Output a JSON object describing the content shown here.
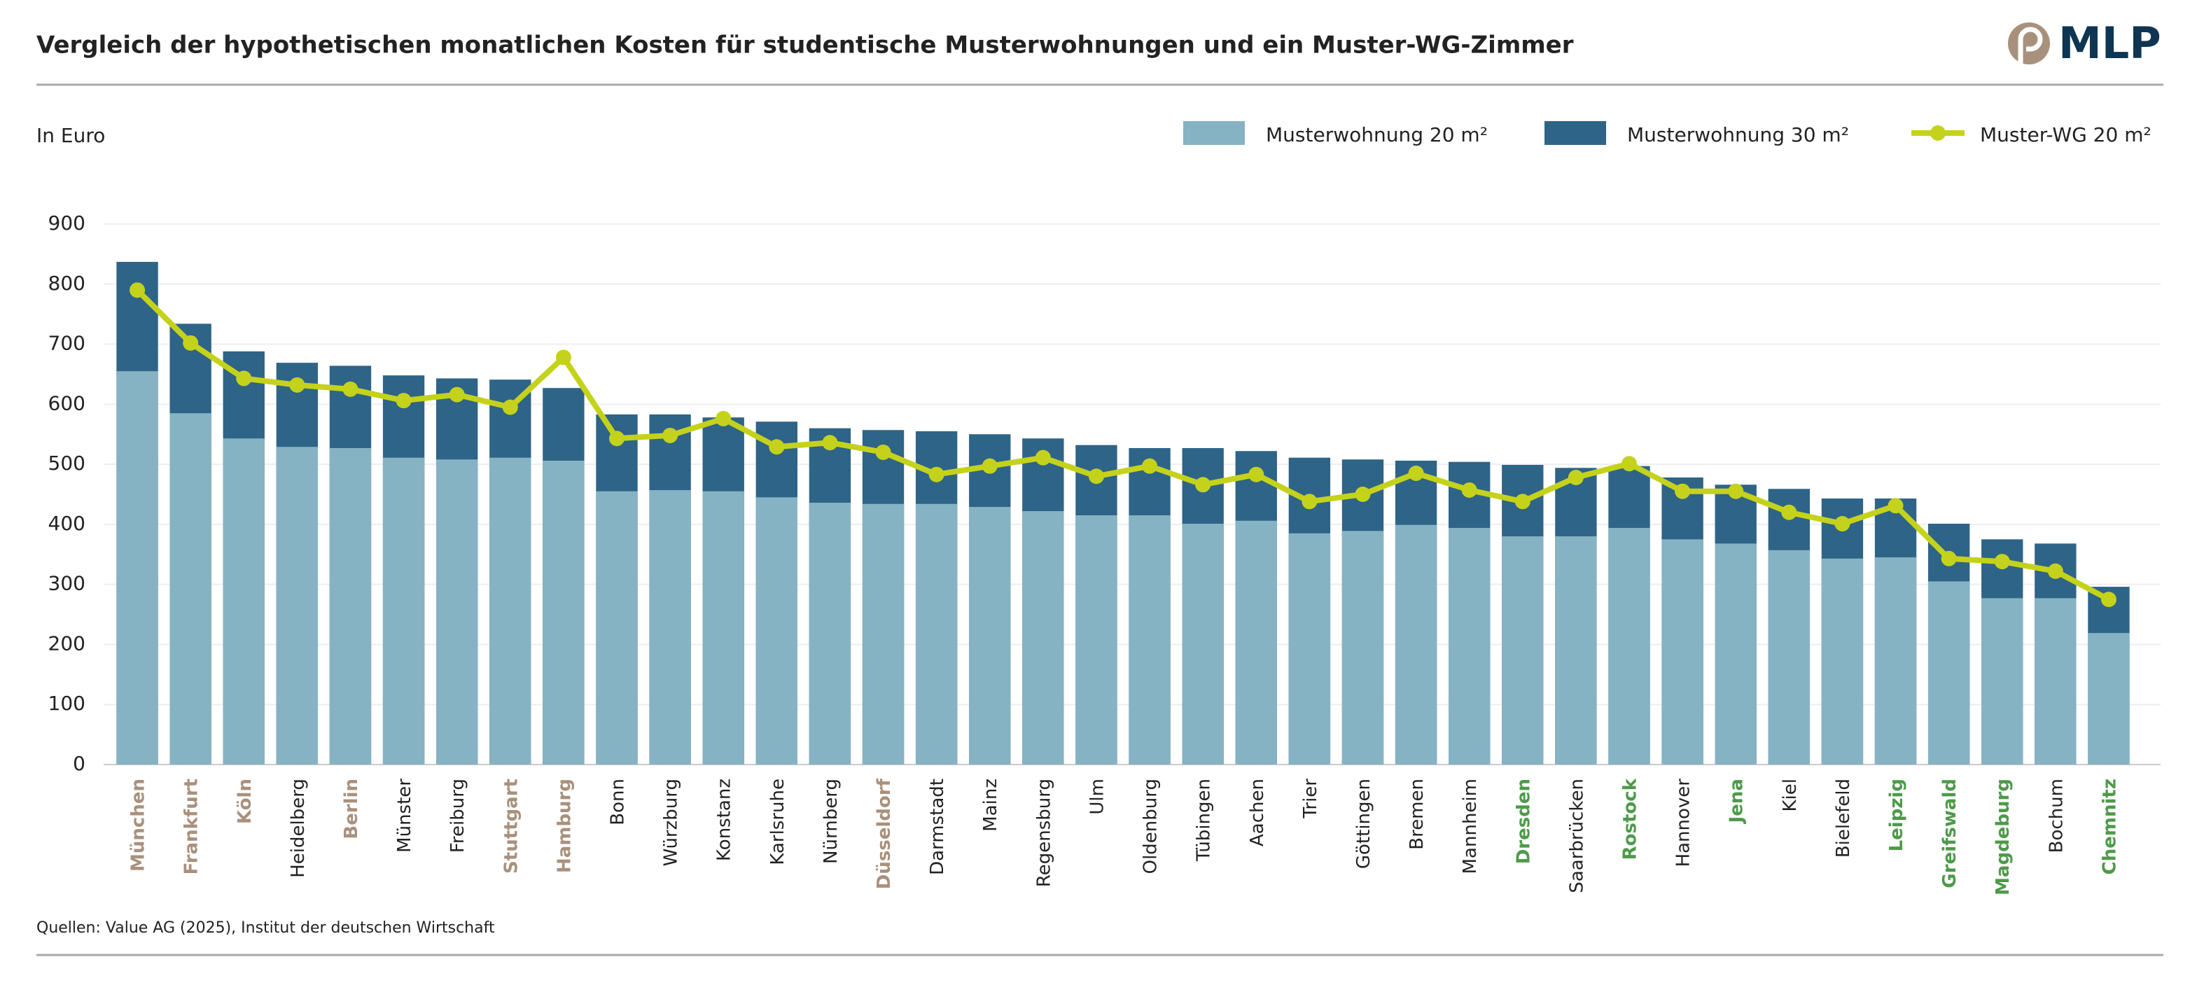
{
  "chart_data": {
    "type": "bar",
    "title": "Vergleich der hypothetischen monatlichen Kosten für studentische Musterwohnungen und ein Muster-WG-Zimmer",
    "logo": "MLP",
    "y_label": "In Euro",
    "source": "Quellen: Value AG (2025), Institut der deutschen Wirtschaft",
    "categories": [
      "München",
      "Frankfurt",
      "Köln",
      "Heidelberg",
      "Berlin",
      "Münster",
      "Freiburg",
      "Stuttgart",
      "Hamburg",
      "Bonn",
      "Würzburg",
      "Konstanz",
      "Karlsruhe",
      "Nürnberg",
      "Düsseldorf",
      "Darmstadt",
      "Mainz",
      "Regensburg",
      "Ulm",
      "Oldenburg",
      "Tübingen",
      "Aachen",
      "Trier",
      "Göttingen",
      "Bremen",
      "Mannheim",
      "Dresden",
      "Saarbrücken",
      "Rostock",
      "Hannover",
      "Jena",
      "Kiel",
      "Bielefeld",
      "Leipzig",
      "Greifswald",
      "Magdeburg",
      "Bochum",
      "Chemnitz"
    ],
    "category_colors": [
      "#a8917c",
      "#a8917c",
      "#a8917c",
      "#222222",
      "#a8917c",
      "#222222",
      "#222222",
      "#a8917c",
      "#a8917c",
      "#222222",
      "#222222",
      "#222222",
      "#222222",
      "#222222",
      "#a8917c",
      "#222222",
      "#222222",
      "#222222",
      "#222222",
      "#222222",
      "#222222",
      "#222222",
      "#222222",
      "#222222",
      "#222222",
      "#222222",
      "#4e9a4a",
      "#222222",
      "#4e9a4a",
      "#222222",
      "#4e9a4a",
      "#222222",
      "#222222",
      "#4e9a4a",
      "#4e9a4a",
      "#4e9a4a",
      "#222222",
      "#4e9a4a"
    ],
    "series": [
      {
        "name": "Musterwohnung 30 m²",
        "color": "#2e6487",
        "values": [
          837,
          734,
          688,
          669,
          664,
          648,
          643,
          641,
          627,
          583,
          583,
          578,
          571,
          560,
          557,
          555,
          550,
          543,
          532,
          527,
          527,
          522,
          511,
          508,
          506,
          504,
          499,
          494,
          497,
          478,
          466,
          459,
          443,
          443,
          401,
          375,
          368,
          296
        ]
      },
      {
        "name": "Musterwohnung 20 m²",
        "color": "#86b3c3",
        "values": [
          655,
          585,
          543,
          529,
          527,
          511,
          508,
          511,
          506,
          455,
          457,
          455,
          445,
          436,
          434,
          434,
          429,
          422,
          415,
          415,
          401,
          406,
          385,
          389,
          399,
          394,
          380,
          380,
          394,
          375,
          368,
          357,
          343,
          345,
          305,
          277,
          277,
          219
        ]
      },
      {
        "name": "Muster-WG 20 m²",
        "type": "line",
        "color": "#c5d21b",
        "values": [
          790,
          702,
          643,
          632,
          625,
          606,
          616,
          595,
          678,
          543,
          548,
          576,
          529,
          536,
          520,
          483,
          497,
          511,
          480,
          497,
          466,
          483,
          438,
          450,
          485,
          457,
          438,
          478,
          501,
          455,
          455,
          420,
          401,
          431,
          343,
          338,
          322,
          275
        ]
      }
    ],
    "legend_order": [
      1,
      0,
      2
    ],
    "ylim": [
      0,
      900
    ],
    "yticks": [
      0,
      100,
      200,
      300,
      400,
      500,
      600,
      700,
      800,
      900
    ],
    "grid": true
  }
}
